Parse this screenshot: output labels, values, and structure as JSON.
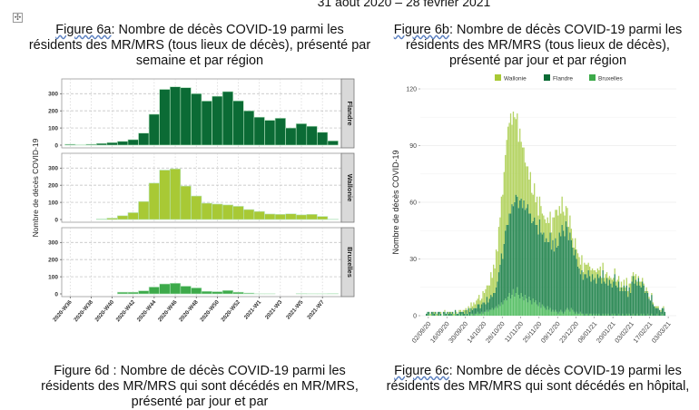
{
  "header": {
    "date_range": "31 aout 2020 – 28 fevrier 2021"
  },
  "move_handle": {
    "icon": "move-icon",
    "glyph": "✣"
  },
  "captions": {
    "fig6a": {
      "label": "Figure 6a",
      "text": ": Nombre de décès COVID-19 parmi les résidents des MR/MRS (tous lieux de décès), présenté par semaine et par région"
    },
    "fig6b": {
      "label": "Figure 6b",
      "text": ": Nombre de décès COVID-19 parmi les résidents des MR/MRS (tous lieux de décès), présenté par jour et par région"
    },
    "fig6d": {
      "label": "Figure 6d",
      "text": " : Nombre de décès COVID-19 parmi les résidents des MR/MRS qui sont décédés en MR/MRS, présenté par jour et par"
    },
    "fig6c": {
      "label": "Figure 6c",
      "text": ": Nombre de décès COVID-19 parmi les résidents des MR/MRS qui sont décédés en hôpital,"
    }
  },
  "chart_data": [
    {
      "id": "fig6a",
      "type": "bar",
      "title": "",
      "xlabel": "",
      "ylabel": "Nombre de décès COVID-19",
      "ylim": [
        0,
        370
      ],
      "yticks": [
        0,
        100,
        200,
        300
      ],
      "grid": true,
      "facets": [
        "Flandre",
        "Wallonie",
        "Bruxelles"
      ],
      "categories": [
        "2020-W36",
        "2020-W37",
        "2020-W38",
        "2020-W39",
        "2020-W40",
        "2020-W41",
        "2020-W42",
        "2020-W43",
        "2020-W44",
        "2020-W45",
        "2020-W46",
        "2020-W47",
        "2020-W48",
        "2020-W49",
        "2020-W50",
        "2020-W51",
        "2020-W52",
        "2020-W53",
        "2021-W1",
        "2021-W2",
        "2021-W3",
        "2021-W4",
        "2021-W5",
        "2021-W6",
        "2021-W7",
        "2021-W8"
      ],
      "tick_labels": [
        "2020-W36",
        "2020-W38",
        "2020-W40",
        "2020-W42",
        "2020-W44",
        "2020-W46",
        "2020-W48",
        "2020-W50",
        "2020-W52",
        "2021-W1",
        "2021-W3",
        "2021-W5",
        "2021-W7"
      ],
      "series": [
        {
          "name": "Flandre",
          "color": "#0b6b35",
          "values": [
            5,
            2,
            5,
            10,
            15,
            22,
            32,
            70,
            180,
            325,
            340,
            335,
            300,
            257,
            285,
            312,
            258,
            200,
            163,
            145,
            157,
            100,
            125,
            110,
            75,
            25
          ]
        },
        {
          "name": "Wallonie",
          "color": "#a8c935",
          "values": [
            0,
            0,
            0,
            3,
            8,
            22,
            40,
            105,
            212,
            288,
            295,
            195,
            137,
            95,
            90,
            85,
            77,
            58,
            47,
            32,
            30,
            33,
            27,
            30,
            18,
            2
          ]
        },
        {
          "name": "Bruxelles",
          "color": "#3daa4a",
          "values": [
            0,
            0,
            0,
            0,
            0,
            10,
            10,
            18,
            40,
            58,
            62,
            45,
            35,
            15,
            13,
            20,
            10,
            5,
            1,
            1,
            0,
            0,
            2,
            1,
            1,
            2
          ]
        }
      ]
    },
    {
      "id": "fig6b",
      "type": "bar",
      "stacked": true,
      "title": "",
      "xlabel": "",
      "ylabel": "Nombre de décès COVID-19",
      "ylim": [
        0,
        120
      ],
      "yticks": [
        0,
        30,
        60,
        90,
        120
      ],
      "grid": true,
      "legend": "top",
      "start_date": "31/08/20",
      "tick_labels": [
        "02/09/20",
        "16/09/20",
        "30/09/20",
        "14/10/20",
        "28/10/20",
        "11/11/20",
        "25/11/20",
        "09/12/20",
        "23/12/20",
        "06/01/21",
        "20/01/21",
        "03/02/21",
        "17/02/21",
        "03/03/21"
      ],
      "tick_day_index": [
        2,
        16,
        30,
        44,
        58,
        72,
        86,
        100,
        114,
        128,
        142,
        156,
        170,
        184
      ],
      "series": [
        {
          "name": "Bruxelles",
          "color": "#5cc16a",
          "values": [
            0,
            0,
            1,
            0,
            1,
            0,
            0,
            1,
            0,
            0,
            1,
            0,
            0,
            1,
            0,
            0,
            1,
            0,
            0,
            0,
            1,
            0,
            1,
            0,
            0,
            1,
            0,
            1,
            0,
            0,
            1,
            0,
            1,
            0,
            1,
            1,
            0,
            1,
            1,
            2,
            1,
            1,
            2,
            1,
            2,
            2,
            3,
            2,
            3,
            3,
            4,
            3,
            4,
            5,
            4,
            6,
            5,
            7,
            6,
            8,
            9,
            8,
            10,
            12,
            9,
            11,
            14,
            10,
            12,
            15,
            11,
            9,
            12,
            10,
            8,
            11,
            9,
            7,
            10,
            8,
            6,
            9,
            7,
            8,
            6,
            5,
            7,
            4,
            6,
            5,
            4,
            3,
            5,
            3,
            4,
            2,
            3,
            2,
            3,
            2,
            1,
            2,
            3,
            2,
            1,
            2,
            3,
            4,
            3,
            2,
            4,
            3,
            2,
            1,
            2,
            1,
            1,
            2,
            1,
            1,
            0,
            1,
            1,
            0,
            1,
            1,
            0,
            1,
            0,
            1,
            0,
            1,
            0,
            0,
            1,
            0,
            1,
            0,
            1,
            0,
            0,
            1,
            0,
            1,
            0,
            0,
            1,
            0,
            0,
            1,
            0,
            0,
            1,
            0,
            1,
            0,
            0,
            1,
            0,
            0,
            1,
            0,
            0,
            1,
            0,
            1,
            0,
            0,
            1,
            0,
            0,
            1,
            0,
            0,
            0,
            1,
            0,
            0,
            0,
            1,
            0,
            0
          ]
        },
        {
          "name": "Flandre",
          "color": "#2e8b57",
          "values": [
            1,
            2,
            1,
            0,
            1,
            2,
            1,
            1,
            0,
            2,
            1,
            1,
            0,
            1,
            2,
            1,
            1,
            1,
            2,
            1,
            1,
            0,
            2,
            1,
            1,
            1,
            2,
            1,
            2,
            1,
            2,
            1,
            3,
            2,
            3,
            2,
            4,
            3,
            3,
            4,
            5,
            3,
            4,
            6,
            5,
            4,
            7,
            5,
            6,
            8,
            6,
            9,
            8,
            10,
            14,
            17,
            22,
            26,
            24,
            30,
            36,
            40,
            38,
            42,
            45,
            48,
            44,
            50,
            52,
            48,
            46,
            52,
            50,
            47,
            53,
            45,
            48,
            52,
            44,
            46,
            43,
            41,
            45,
            40,
            42,
            38,
            44,
            40,
            37,
            39,
            35,
            38,
            34,
            36,
            40,
            33,
            37,
            32,
            38,
            34,
            36,
            42,
            39,
            46,
            44,
            40,
            47,
            43,
            37,
            42,
            36,
            33,
            30,
            34,
            28,
            25,
            24,
            20,
            23,
            18,
            22,
            21,
            19,
            24,
            20,
            17,
            22,
            18,
            20,
            16,
            22,
            19,
            21,
            17,
            23,
            18,
            16,
            20,
            15,
            19,
            17,
            14,
            18,
            21,
            16,
            15,
            17,
            13,
            15,
            12,
            16,
            13,
            15,
            10,
            14,
            12,
            18,
            20,
            17,
            19,
            15,
            20,
            16,
            14,
            18,
            15,
            12,
            13,
            11,
            9,
            8,
            10,
            6,
            5,
            4,
            3,
            4,
            3,
            2,
            3,
            4,
            2
          ]
        },
        {
          "name": "Wallonie",
          "color": "#b5d464",
          "values": [
            0,
            0,
            0,
            1,
            0,
            0,
            1,
            0,
            1,
            0,
            0,
            1,
            0,
            0,
            1,
            0,
            0,
            1,
            0,
            1,
            0,
            1,
            0,
            1,
            0,
            1,
            1,
            0,
            1,
            2,
            1,
            2,
            1,
            2,
            3,
            2,
            3,
            2,
            4,
            3,
            5,
            4,
            3,
            6,
            5,
            8,
            6,
            9,
            7,
            12,
            10,
            15,
            13,
            20,
            16,
            24,
            25,
            30,
            34,
            38,
            40,
            45,
            52,
            48,
            53,
            42,
            50,
            45,
            40,
            44,
            35,
            38,
            30,
            32,
            28,
            25,
            22,
            20,
            18,
            22,
            16,
            14,
            18,
            12,
            15,
            10,
            12,
            14,
            11,
            9,
            12,
            8,
            13,
            10,
            11,
            9,
            12,
            18,
            15,
            20,
            16,
            14,
            12,
            15,
            10,
            11,
            8,
            10,
            7,
            9,
            6,
            5,
            4,
            6,
            5,
            7,
            6,
            5,
            8,
            4,
            6,
            5,
            7,
            4,
            5,
            6,
            3,
            5,
            4,
            6,
            3,
            4,
            5,
            3,
            4,
            2,
            5,
            3,
            4,
            2,
            3,
            4,
            2,
            3,
            2,
            4,
            3,
            2,
            3,
            2,
            3,
            2,
            4,
            3,
            2,
            5,
            3,
            2,
            4,
            3,
            2,
            1,
            2,
            3,
            2,
            1,
            1,
            2,
            1,
            1,
            0,
            1,
            1,
            0,
            1,
            1,
            1,
            0,
            1,
            0,
            1,
            0
          ]
        }
      ]
    }
  ]
}
